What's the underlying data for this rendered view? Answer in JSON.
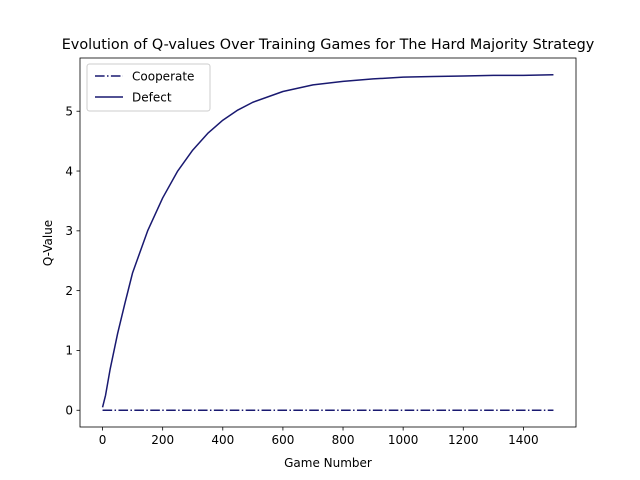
{
  "chart_data": {
    "type": "line",
    "title": "Evolution of Q-values Over Training Games for The Hard Majority Strategy",
    "xlabel": "Game Number",
    "ylabel": "Q-Value",
    "xlim": [
      -75,
      1575
    ],
    "ylim": [
      -0.28,
      5.89
    ],
    "xticks": [
      0,
      200,
      400,
      600,
      800,
      1000,
      1200,
      1400
    ],
    "yticks": [
      0,
      1,
      2,
      3,
      4,
      5
    ],
    "grid": false,
    "legend_position": "top-left",
    "series": [
      {
        "name": "Cooperate",
        "color": "#191970",
        "line_style": "dashdot",
        "x": [
          0,
          1500
        ],
        "y": [
          0,
          0
        ]
      },
      {
        "name": "Defect",
        "color": "#191970",
        "line_style": "solid",
        "x": [
          0,
          10,
          25,
          50,
          75,
          100,
          150,
          200,
          250,
          300,
          350,
          400,
          450,
          500,
          600,
          700,
          800,
          900,
          1000,
          1100,
          1200,
          1300,
          1400,
          1500
        ],
        "y": [
          0.05,
          0.25,
          0.68,
          1.28,
          1.8,
          2.3,
          3.0,
          3.55,
          4.0,
          4.35,
          4.63,
          4.85,
          5.02,
          5.15,
          5.33,
          5.44,
          5.5,
          5.54,
          5.57,
          5.58,
          5.59,
          5.6,
          5.6,
          5.61
        ]
      }
    ]
  }
}
